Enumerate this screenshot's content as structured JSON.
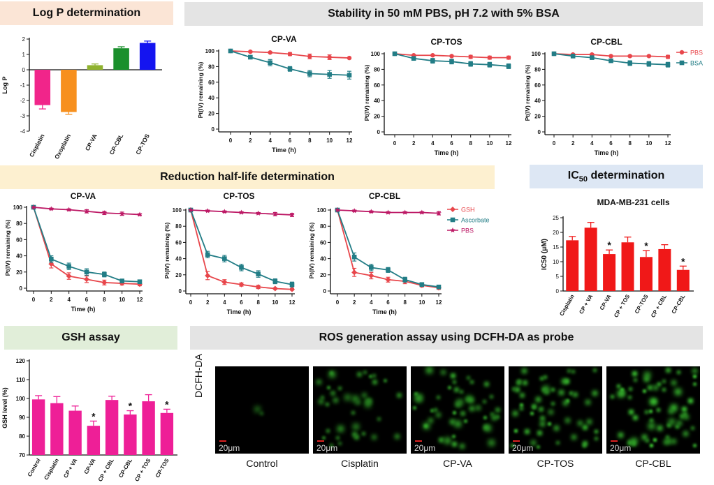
{
  "banners": {
    "logp": "Log P determination",
    "stability": "Stability in 50 mM PBS, pH 7.2 with 5% BSA",
    "reduction": "Reduction half-life determination",
    "ic50_prefix": "IC",
    "ic50_sub": "50",
    "ic50_suffix": " determination",
    "gsh": "GSH assay",
    "ros": "ROS generation assay using DCFH-DA as probe"
  },
  "colors": {
    "banner_orange": "#fbe5d6",
    "banner_gray": "#e4e4e4",
    "banner_yellow": "#fdf0d0",
    "banner_blue": "#dde7f4",
    "banner_green": "#e1eed9",
    "pbs_red": "#e8464b",
    "bsa_teal": "#227d86",
    "gsh_red": "#e8464b",
    "ascorbate_teal": "#227d86",
    "pbs_magenta": "#bd1a66",
    "ic50_red": "#f01818",
    "gsh_pink": "#ee1f97",
    "fluorescence_green": "#3ddc3d"
  },
  "chart_data": [
    {
      "id": "logp",
      "type": "bar",
      "categories": [
        "Cisplatin",
        "Oxoplatin",
        "CP-VA",
        "CP-CBL",
        "CP-TOS"
      ],
      "values": [
        -2.3,
        -2.75,
        0.3,
        1.4,
        1.75
      ],
      "errors": [
        0.25,
        0.15,
        0.08,
        0.1,
        0.12
      ],
      "colors": [
        "#f1258a",
        "#f7901e",
        "#8fb22e",
        "#1a8f2c",
        "#1414f0"
      ],
      "ylabel": "Log P",
      "ylim": [
        -4,
        2
      ],
      "yticks": [
        "2",
        "1",
        "0",
        "-1",
        "-2",
        "-3",
        "-4"
      ]
    },
    {
      "id": "stab-va",
      "type": "line",
      "title": "CP-VA",
      "xlabel": "Time (h)",
      "ylabel": "Pt(IV) remaining (%)",
      "x": [
        0,
        2,
        4,
        6,
        8,
        10,
        12
      ],
      "ylim": [
        0,
        100
      ],
      "yticks": [
        "0",
        "20",
        "40",
        "60",
        "80",
        "100"
      ],
      "xticks": [
        "0",
        "2",
        "4",
        "6",
        "8",
        "10",
        "12"
      ],
      "series": [
        {
          "name": "PBS",
          "values": [
            100,
            99,
            98,
            96,
            93,
            92,
            91
          ],
          "errors": [
            0,
            1,
            1,
            2,
            3,
            3,
            1
          ]
        },
        {
          "name": "BSA",
          "values": [
            100,
            92,
            85,
            77,
            71,
            70,
            69
          ],
          "errors": [
            0,
            2,
            4,
            3,
            4,
            5,
            5
          ]
        }
      ]
    },
    {
      "id": "stab-tos",
      "type": "line",
      "title": "CP-TOS",
      "xlabel": "Time (h)",
      "ylabel": "Pt(IV) remaining (%)",
      "x": [
        0,
        2,
        4,
        6,
        8,
        10,
        12
      ],
      "ylim": [
        0,
        100
      ],
      "yticks": [
        "0",
        "20",
        "40",
        "60",
        "80",
        "100"
      ],
      "xticks": [
        "0",
        "2",
        "4",
        "6",
        "8",
        "10",
        "12"
      ],
      "series": [
        {
          "name": "PBS",
          "values": [
            100,
            98,
            98,
            97,
            96,
            95,
            95
          ],
          "errors": [
            0,
            1,
            1,
            1,
            2,
            2,
            2
          ]
        },
        {
          "name": "BSA",
          "values": [
            100,
            94,
            91,
            90,
            87,
            86,
            84
          ],
          "errors": [
            0,
            2,
            3,
            3,
            3,
            3,
            3
          ]
        }
      ]
    },
    {
      "id": "stab-cbl",
      "type": "line",
      "title": "CP-CBL",
      "xlabel": "Time (h)",
      "ylabel": "Pt(IV) remaining (%)",
      "x": [
        0,
        2,
        4,
        6,
        8,
        10,
        12
      ],
      "ylim": [
        0,
        100
      ],
      "yticks": [
        "0",
        "20",
        "40",
        "60",
        "80",
        "100"
      ],
      "xticks": [
        "0",
        "2",
        "4",
        "6",
        "8",
        "10",
        "12"
      ],
      "legend": "right",
      "series": [
        {
          "name": "PBS",
          "values": [
            100,
            99,
            99,
            97,
            97,
            97,
            96
          ],
          "errors": [
            0,
            1,
            1,
            1,
            1,
            1,
            2
          ]
        },
        {
          "name": "BSA",
          "values": [
            100,
            97,
            95,
            91,
            88,
            87,
            86
          ],
          "errors": [
            0,
            2,
            2,
            2,
            3,
            3,
            3
          ]
        }
      ]
    },
    {
      "id": "red-va",
      "type": "line",
      "title": "CP-VA",
      "xlabel": "Time (h)",
      "ylabel": "Pt(IV) remaining (%)",
      "x": [
        0,
        2,
        4,
        6,
        8,
        10,
        12
      ],
      "ylim": [
        0,
        100
      ],
      "yticks": [
        "0",
        "20",
        "40",
        "60",
        "80",
        "100"
      ],
      "xticks": [
        "0",
        "2",
        "4",
        "6",
        "8",
        "10",
        "12"
      ],
      "series": [
        {
          "name": "GSH",
          "values": [
            100,
            30,
            15,
            11,
            7,
            6,
            5
          ],
          "errors": [
            0,
            5,
            4,
            4,
            3,
            2,
            2
          ]
        },
        {
          "name": "Ascorbate",
          "values": [
            100,
            36,
            27,
            20,
            17,
            9,
            8
          ],
          "errors": [
            0,
            4,
            4,
            4,
            3,
            2,
            2
          ]
        },
        {
          "name": "PBS",
          "values": [
            100,
            98,
            97,
            95,
            93,
            92,
            91
          ],
          "errors": [
            0,
            1,
            1,
            2,
            2,
            2,
            1
          ]
        }
      ]
    },
    {
      "id": "red-tos",
      "type": "line",
      "title": "CP-TOS",
      "xlabel": "Time (h)",
      "ylabel": "Pt(IV) remaining (%)",
      "x": [
        0,
        2,
        4,
        6,
        8,
        10,
        12
      ],
      "ylim": [
        0,
        100
      ],
      "yticks": [
        "0",
        "20",
        "40",
        "60",
        "80",
        "100"
      ],
      "xticks": [
        "0",
        "2",
        "4",
        "6",
        "8",
        "10",
        "12"
      ],
      "series": [
        {
          "name": "GSH",
          "values": [
            100,
            19,
            11,
            8,
            5,
            3,
            2
          ],
          "errors": [
            0,
            5,
            3,
            2,
            2,
            1,
            1
          ]
        },
        {
          "name": "Ascorbate",
          "values": [
            100,
            45,
            40,
            29,
            21,
            12,
            8
          ],
          "errors": [
            0,
            4,
            4,
            4,
            4,
            3,
            3
          ]
        },
        {
          "name": "PBS",
          "values": [
            100,
            99,
            98,
            97,
            96,
            95,
            94
          ],
          "errors": [
            0,
            1,
            1,
            1,
            1,
            2,
            2
          ]
        }
      ]
    },
    {
      "id": "red-cbl",
      "type": "line",
      "title": "CP-CBL",
      "xlabel": "Time (h)",
      "ylabel": "Pt(IV) remaining (%)",
      "x": [
        0,
        2,
        4,
        6,
        8,
        10,
        12
      ],
      "ylim": [
        0,
        100
      ],
      "yticks": [
        "0",
        "20",
        "40",
        "60",
        "80",
        "100"
      ],
      "xticks": [
        "0",
        "2",
        "4",
        "6",
        "8",
        "10",
        "12"
      ],
      "legend": "right",
      "series": [
        {
          "name": "GSH",
          "values": [
            100,
            23,
            19,
            14,
            12,
            7,
            4
          ],
          "errors": [
            0,
            5,
            4,
            3,
            3,
            2,
            2
          ]
        },
        {
          "name": "Ascorbate",
          "values": [
            100,
            42,
            29,
            26,
            14,
            8,
            5
          ],
          "errors": [
            0,
            5,
            4,
            3,
            3,
            2,
            2
          ]
        },
        {
          "name": "PBS",
          "values": [
            100,
            99,
            98,
            97,
            97,
            97,
            96
          ],
          "errors": [
            0,
            1,
            1,
            1,
            1,
            1,
            2
          ]
        }
      ]
    },
    {
      "id": "ic50",
      "type": "bar",
      "title": "MDA-MB-231 cells",
      "ylabel": "IC50 (μM)",
      "categories": [
        "Cisplatin",
        "CP + VA",
        "CP-VA",
        "CP + TOS",
        "CP-TOS",
        "CP + CBL",
        "CP-CBL"
      ],
      "values": [
        17.3,
        21.6,
        12.6,
        16.6,
        11.6,
        14.3,
        7.2
      ],
      "errors": [
        1.3,
        1.8,
        1.4,
        1.8,
        2.2,
        1.5,
        1.3
      ],
      "significant": [
        false,
        false,
        true,
        false,
        true,
        false,
        true
      ],
      "star_label": "*",
      "ylim": [
        0,
        25
      ],
      "yticks": [
        "0",
        "5",
        "10",
        "15",
        "20",
        "25"
      ]
    },
    {
      "id": "gsh",
      "type": "bar",
      "ylabel": "GSH level (%)",
      "categories": [
        "Control",
        "Cisplatin",
        "CP + VA",
        "CP-VA",
        "CP + CBL",
        "CP-CBL",
        "CP + TOS",
        "CP-TOS"
      ],
      "values": [
        99.5,
        97.5,
        93.5,
        85.5,
        99.2,
        91.5,
        98.5,
        92.3
      ],
      "errors": [
        2.0,
        3.5,
        2.5,
        2.5,
        2.0,
        2.0,
        3.5,
        2.0
      ],
      "significant": [
        false,
        false,
        false,
        true,
        false,
        true,
        false,
        true
      ],
      "star_label": "*",
      "ylim": [
        70,
        120
      ],
      "yticks": [
        "70",
        "80",
        "90",
        "100",
        "110",
        "120"
      ]
    }
  ],
  "ros": {
    "stain_label": "DCFH-DA",
    "scale_label": "20μm",
    "panels": [
      {
        "label": "Control",
        "cells": 2,
        "intensity": 0.25
      },
      {
        "label": "Cisplatin",
        "cells": 38,
        "intensity": 0.55
      },
      {
        "label": "CP-VA",
        "cells": 48,
        "intensity": 0.7
      },
      {
        "label": "CP-TOS",
        "cells": 55,
        "intensity": 0.85
      },
      {
        "label": "CP-CBL",
        "cells": 60,
        "intensity": 0.95
      }
    ]
  }
}
